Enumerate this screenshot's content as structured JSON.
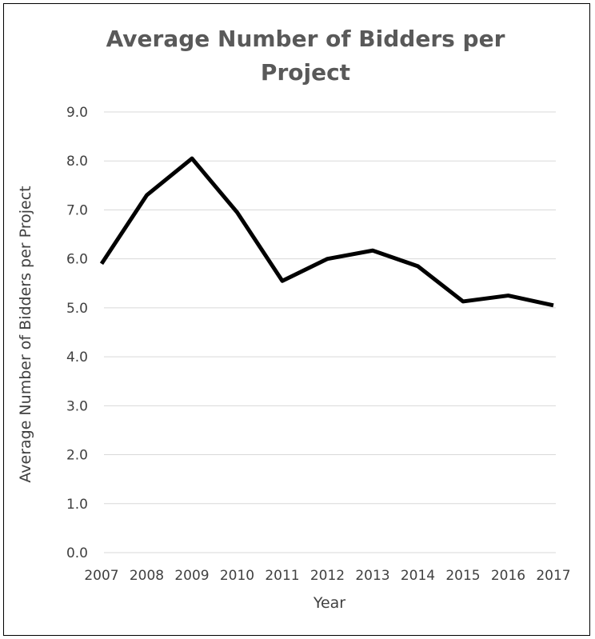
{
  "chart_data": {
    "type": "line",
    "title_lines": [
      "Average Number of Bidders per",
      "Project"
    ],
    "xlabel": "Year",
    "ylabel": "Average Number of Bidders per Project",
    "categories": [
      "2007",
      "2008",
      "2009",
      "2010",
      "2011",
      "2012",
      "2013",
      "2014",
      "2015",
      "2016",
      "2017"
    ],
    "series": [
      {
        "values": [
          5.9,
          7.3,
          8.05,
          6.95,
          5.55,
          6.0,
          6.17,
          5.85,
          5.13,
          5.25,
          5.05
        ],
        "color": "#000000"
      }
    ],
    "ylim": [
      0,
      9
    ],
    "yticks": [
      "0.0",
      "1.0",
      "2.0",
      "3.0",
      "4.0",
      "5.0",
      "6.0",
      "7.0",
      "8.0",
      "9.0"
    ],
    "grid": "horizontal",
    "legend": "none"
  }
}
